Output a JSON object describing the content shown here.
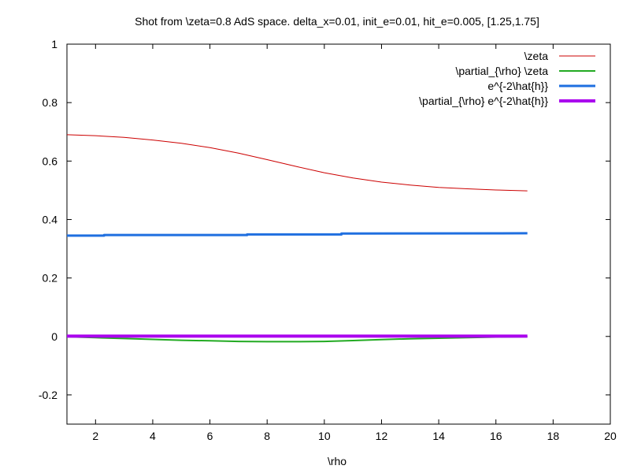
{
  "chart_data": {
    "type": "line",
    "title": "Shot from \\zeta=0.8 AdS space. delta_x=0.01, init_e=0.01, hit_e=0.005, [1.25,1.75]",
    "xlabel": "\\rho",
    "ylabel": "",
    "xlim": [
      1,
      20
    ],
    "ylim": [
      -0.3,
      1
    ],
    "grid": false,
    "legend_position": "top-right",
    "x_ticks": [
      2,
      4,
      6,
      8,
      10,
      12,
      14,
      16,
      18,
      20
    ],
    "y_ticks": [
      -0.2,
      0,
      0.2,
      0.4,
      0.6,
      0.8,
      1
    ],
    "x_tick_labels": [
      "2",
      "4",
      "6",
      "8",
      "10",
      "12",
      "14",
      "16",
      "18",
      "20"
    ],
    "y_tick_labels": [
      "-0.2",
      "0",
      "0.2",
      "0.4",
      "0.6",
      "0.8",
      "1"
    ],
    "series": [
      {
        "name": "\\zeta",
        "color": "#cc0000",
        "width": 1,
        "x": [
          1,
          2,
          3,
          4,
          5,
          6,
          7,
          8,
          9,
          10,
          11,
          12,
          13,
          14,
          15,
          16,
          17.1
        ],
        "y": [
          0.69,
          0.687,
          0.681,
          0.672,
          0.661,
          0.646,
          0.627,
          0.605,
          0.582,
          0.56,
          0.542,
          0.528,
          0.518,
          0.51,
          0.505,
          0.501,
          0.498
        ]
      },
      {
        "name": "\\partial_{\\rho} \\zeta",
        "color": "#22aa22",
        "width": 2,
        "x": [
          1,
          2,
          3,
          4,
          5,
          6,
          7,
          8,
          9,
          10,
          11,
          12,
          13,
          14,
          15,
          16,
          17.1
        ],
        "y": [
          -0.001,
          -0.004,
          -0.007,
          -0.01,
          -0.013,
          -0.015,
          -0.017,
          -0.018,
          -0.018,
          -0.017,
          -0.014,
          -0.011,
          -0.008,
          -0.006,
          -0.004,
          -0.002,
          -0.001
        ]
      },
      {
        "name": "e^{-2\\hat{h}}",
        "color": "#1f6fe0",
        "width": 3,
        "x": [
          1,
          2.3,
          2.3,
          7.3,
          7.3,
          10.6,
          10.6,
          17.1
        ],
        "y": [
          0.345,
          0.345,
          0.347,
          0.347,
          0.349,
          0.349,
          0.352,
          0.353
        ]
      },
      {
        "name": "\\partial_{\\rho} e^{-2\\hat{h}}",
        "color": "#aa00ee",
        "width": 4,
        "x": [
          1,
          4,
          8,
          12,
          17.1
        ],
        "y": [
          0.001,
          0.001,
          0.001,
          0.001,
          0.001
        ]
      }
    ]
  }
}
